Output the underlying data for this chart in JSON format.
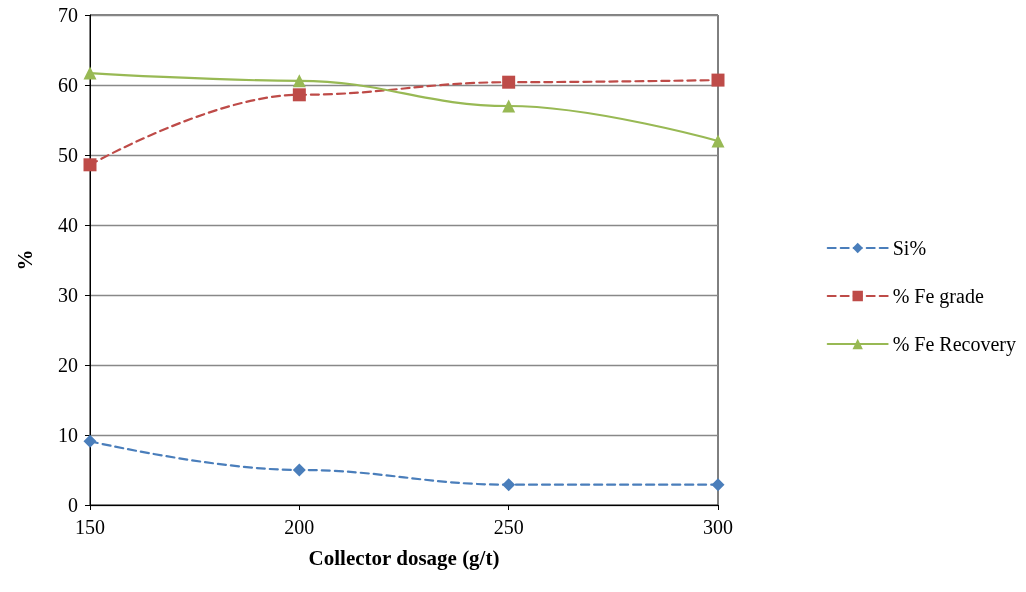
{
  "chart_data": {
    "type": "line",
    "xlabel": "Collector dosage (g/t)",
    "ylabel": "%",
    "x": [
      150,
      200,
      250,
      300
    ],
    "series": [
      {
        "name": "Si%",
        "color": "#4a7ebb",
        "values": [
          9.1,
          5.0,
          2.9,
          2.9
        ],
        "marker": "diamond",
        "line_style": "dashed"
      },
      {
        "name": "% Fe grade",
        "color": "#be4b48",
        "values": [
          48.6,
          58.6,
          60.4,
          60.7
        ],
        "marker": "square",
        "line_style": "dashed"
      },
      {
        "name": "% Fe Recovery",
        "color": "#98b954",
        "values": [
          61.7,
          60.6,
          57.0,
          52.0
        ],
        "marker": "triangle",
        "line_style": "solid"
      }
    ],
    "xlim": [
      150,
      300
    ],
    "xticks": [
      150,
      200,
      250,
      300
    ],
    "ylim": [
      0,
      70
    ],
    "yticks": [
      0,
      10,
      20,
      30,
      40,
      50,
      60,
      70
    ],
    "grid": "y",
    "legend": "right"
  }
}
